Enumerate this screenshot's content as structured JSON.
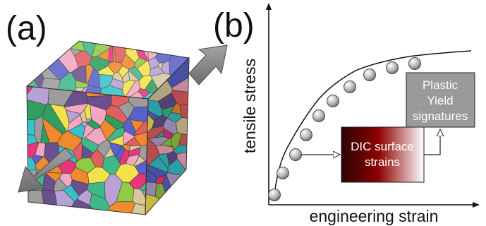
{
  "panel_a": {
    "label": "(a)",
    "palette": [
      "#e9357a",
      "#f08a2f",
      "#37c1c8",
      "#8fcb43",
      "#b8a1d4",
      "#f3e34a",
      "#2f9e5e",
      "#9c9c9c",
      "#e25f5f",
      "#5a62c9",
      "#d8c99b",
      "#6b4f8f",
      "#f4a7c0",
      "#3fb88a"
    ]
  },
  "panel_b": {
    "label": "(b)",
    "xlabel": "engineering strain",
    "ylabel": "tensile stress",
    "dic_box": {
      "lines": [
        "DIC surface",
        "strains"
      ],
      "color": "#8e0000"
    },
    "yield_box": {
      "lines": [
        "Plastic",
        "Yield",
        "signatures"
      ],
      "color": "#9a9a9a"
    }
  }
}
